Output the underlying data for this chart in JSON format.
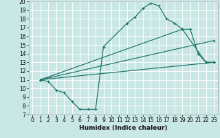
{
  "xlabel": "Humidex (Indice chaleur)",
  "xlim": [
    -0.5,
    23.5
  ],
  "ylim": [
    7,
    20
  ],
  "xticks": [
    0,
    1,
    2,
    3,
    4,
    5,
    6,
    7,
    8,
    9,
    10,
    11,
    12,
    13,
    14,
    15,
    16,
    17,
    18,
    19,
    20,
    21,
    22,
    23
  ],
  "yticks": [
    7,
    8,
    9,
    10,
    11,
    12,
    13,
    14,
    15,
    16,
    17,
    18,
    19,
    20
  ],
  "bg_color": "#c9e8e5",
  "line_color": "#1a7068",
  "grid_color": "#ffffff",
  "series": [
    {
      "x": [
        1,
        2,
        3,
        4,
        5,
        6,
        7,
        8,
        9,
        12,
        13,
        14,
        15,
        16,
        17,
        18,
        19,
        20,
        21,
        22,
        23
      ],
      "y": [
        11,
        10.8,
        9.8,
        9.5,
        8.5,
        7.6,
        7.6,
        7.6,
        14.8,
        17.5,
        18.2,
        19.2,
        19.8,
        19.5,
        18.0,
        17.5,
        16.8,
        16.8,
        14.0,
        13.0,
        13.0
      ]
    },
    {
      "x": [
        1,
        23
      ],
      "y": [
        11,
        13.0
      ]
    },
    {
      "x": [
        1,
        23
      ],
      "y": [
        11,
        15.5
      ]
    },
    {
      "x": [
        1,
        19,
        22,
        23
      ],
      "y": [
        11,
        16.8,
        13.0,
        13.0
      ]
    }
  ]
}
